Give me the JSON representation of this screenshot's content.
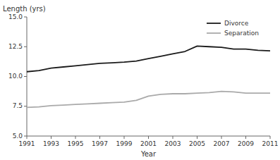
{
  "chart_data": {
    "type": "line",
    "xlabel": "Year",
    "ylabel": "Length (yrs)",
    "x": [
      1991,
      1992,
      1993,
      1994,
      1995,
      1996,
      1997,
      1998,
      1999,
      2000,
      2001,
      2002,
      2003,
      2004,
      2005,
      2006,
      2007,
      2008,
      2009,
      2010,
      2011
    ],
    "series": [
      {
        "name": "Divorce",
        "color": "#1a1a1a",
        "values": [
          10.4,
          10.5,
          10.7,
          10.8,
          10.9,
          11.0,
          11.1,
          11.15,
          11.2,
          11.3,
          11.5,
          11.7,
          11.9,
          12.1,
          12.55,
          12.5,
          12.45,
          12.3,
          12.3,
          12.2,
          12.15
        ]
      },
      {
        "name": "Separation",
        "color": "#aaaaaa",
        "values": [
          7.4,
          7.45,
          7.55,
          7.6,
          7.65,
          7.7,
          7.75,
          7.8,
          7.85,
          8.0,
          8.35,
          8.5,
          8.55,
          8.55,
          8.6,
          8.65,
          8.75,
          8.7,
          8.6,
          8.6,
          8.6
        ]
      }
    ],
    "xlim": [
      1991,
      2011
    ],
    "xticks": [
      1991,
      1993,
      1995,
      1997,
      1999,
      2001,
      2003,
      2005,
      2007,
      2009,
      2011
    ],
    "ylim": [
      5.0,
      15.0
    ],
    "yticks": [
      {
        "value": 5.0,
        "label": "5.0"
      },
      7.5,
      {
        "value": 10.0,
        "label": "10.0"
      },
      12.5,
      {
        "value": 15.0,
        "label": "15.0"
      }
    ],
    "legend": "upper right",
    "grid": false
  }
}
